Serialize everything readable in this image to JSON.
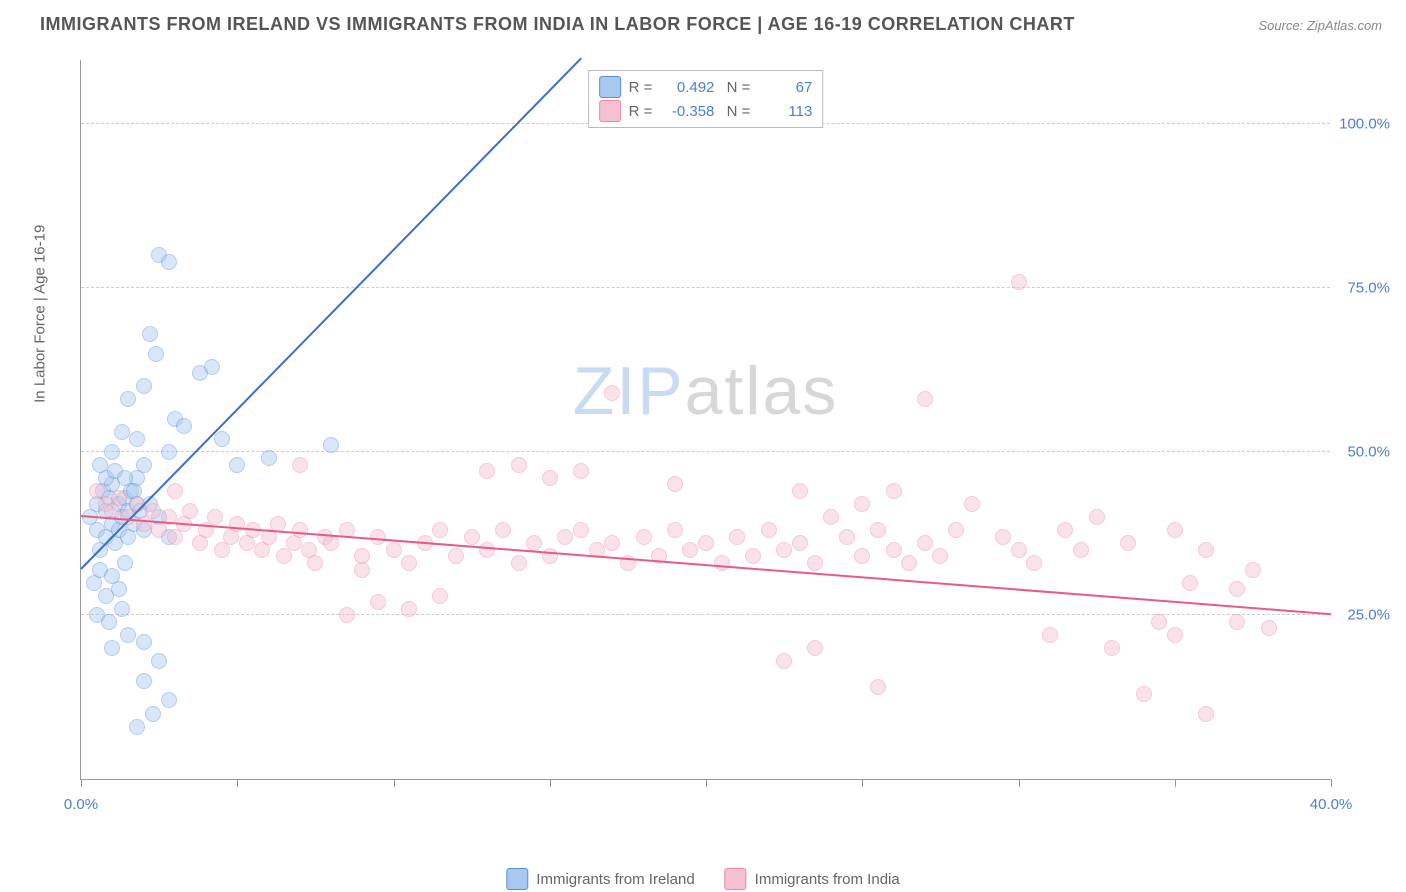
{
  "title": "IMMIGRANTS FROM IRELAND VS IMMIGRANTS FROM INDIA IN LABOR FORCE | AGE 16-19 CORRELATION CHART",
  "source": "Source: ZipAtlas.com",
  "watermark": {
    "part1": "ZIP",
    "part2": "atlas"
  },
  "chart": {
    "type": "scatter",
    "ylabel": "In Labor Force | Age 16-19",
    "background_color": "#ffffff",
    "grid_color": "#cccccc",
    "axis_color": "#999999",
    "tick_color": "#4a7fd8",
    "xlim": [
      0,
      40
    ],
    "ylim": [
      0,
      110
    ],
    "xticks": [
      0,
      40
    ],
    "xtick_labels": [
      "0.0%",
      "40.0%"
    ],
    "xtick_minors": [
      5,
      10,
      15,
      20,
      25,
      30,
      35
    ],
    "yticks": [
      25,
      50,
      75,
      100
    ],
    "ytick_labels": [
      "25.0%",
      "50.0%",
      "75.0%",
      "100.0%"
    ],
    "marker_radius": 8,
    "marker_opacity": 0.45,
    "series": [
      {
        "name": "Immigrants from Ireland",
        "fill_color": "#a8c8f0",
        "stroke_color": "#5a8fd8",
        "line_color": "#3a6fd0",
        "R": "0.492",
        "N": "67",
        "trend": {
          "x1": 0,
          "y1": 32,
          "x2": 16,
          "y2": 110
        },
        "points": [
          [
            0.3,
            40
          ],
          [
            0.5,
            42
          ],
          [
            0.5,
            38
          ],
          [
            0.6,
            35
          ],
          [
            0.7,
            44
          ],
          [
            0.8,
            41
          ],
          [
            0.8,
            37
          ],
          [
            0.9,
            43
          ],
          [
            1.0,
            39
          ],
          [
            1.0,
            45
          ],
          [
            1.1,
            36
          ],
          [
            1.2,
            42
          ],
          [
            1.2,
            38
          ],
          [
            1.3,
            40
          ],
          [
            1.4,
            43
          ],
          [
            1.5,
            41
          ],
          [
            1.5,
            37
          ],
          [
            1.6,
            44
          ],
          [
            1.7,
            39
          ],
          [
            1.8,
            42
          ],
          [
            0.4,
            30
          ],
          [
            0.6,
            32
          ],
          [
            0.8,
            28
          ],
          [
            1.0,
            31
          ],
          [
            1.2,
            29
          ],
          [
            1.4,
            33
          ],
          [
            0.5,
            25
          ],
          [
            0.9,
            24
          ],
          [
            1.3,
            26
          ],
          [
            1.0,
            20
          ],
          [
            1.5,
            22
          ],
          [
            2.0,
            21
          ],
          [
            2.5,
            18
          ],
          [
            2.0,
            15
          ],
          [
            2.8,
            12
          ],
          [
            2.3,
            10
          ],
          [
            1.8,
            8
          ],
          [
            2.0,
            38
          ],
          [
            2.5,
            40
          ],
          [
            2.8,
            37
          ],
          [
            2.2,
            42
          ],
          [
            2.0,
            48
          ],
          [
            2.8,
            50
          ],
          [
            1.8,
            52
          ],
          [
            3.0,
            55
          ],
          [
            3.3,
            54
          ],
          [
            1.5,
            58
          ],
          [
            2.0,
            60
          ],
          [
            2.4,
            65
          ],
          [
            2.2,
            68
          ],
          [
            3.8,
            62
          ],
          [
            4.2,
            63
          ],
          [
            5.0,
            48
          ],
          [
            4.5,
            52
          ],
          [
            6.0,
            49
          ],
          [
            8.0,
            51
          ],
          [
            1.0,
            50
          ],
          [
            1.3,
            53
          ],
          [
            1.8,
            46
          ],
          [
            2.5,
            80
          ],
          [
            2.8,
            79
          ],
          [
            0.8,
            46
          ],
          [
            0.6,
            48
          ],
          [
            1.1,
            47
          ],
          [
            1.7,
            44
          ],
          [
            1.4,
            46
          ],
          [
            1.9,
            41
          ]
        ]
      },
      {
        "name": "Immigrants from India",
        "fill_color": "#f5c0d0",
        "stroke_color": "#e88aa8",
        "line_color": "#e85a8a",
        "R": "-0.358",
        "N": "113",
        "trend": {
          "x1": 0,
          "y1": 40,
          "x2": 40,
          "y2": 25
        },
        "points": [
          [
            0.5,
            44
          ],
          [
            0.8,
            42
          ],
          [
            1.0,
            41
          ],
          [
            1.2,
            43
          ],
          [
            1.5,
            40
          ],
          [
            1.8,
            42
          ],
          [
            2.0,
            39
          ],
          [
            2.3,
            41
          ],
          [
            2.5,
            38
          ],
          [
            2.8,
            40
          ],
          [
            3.0,
            37
          ],
          [
            3.3,
            39
          ],
          [
            3.5,
            41
          ],
          [
            3.8,
            36
          ],
          [
            4.0,
            38
          ],
          [
            4.3,
            40
          ],
          [
            4.5,
            35
          ],
          [
            4.8,
            37
          ],
          [
            5.0,
            39
          ],
          [
            5.3,
            36
          ],
          [
            5.5,
            38
          ],
          [
            5.8,
            35
          ],
          [
            6.0,
            37
          ],
          [
            6.3,
            39
          ],
          [
            6.5,
            34
          ],
          [
            6.8,
            36
          ],
          [
            7.0,
            38
          ],
          [
            7.3,
            35
          ],
          [
            7.5,
            33
          ],
          [
            7.8,
            37
          ],
          [
            8.0,
            36
          ],
          [
            8.5,
            38
          ],
          [
            9.0,
            34
          ],
          [
            9.5,
            37
          ],
          [
            10.0,
            35
          ],
          [
            10.5,
            33
          ],
          [
            11.0,
            36
          ],
          [
            11.5,
            38
          ],
          [
            12.0,
            34
          ],
          [
            12.5,
            37
          ],
          [
            13.0,
            47
          ],
          [
            13.0,
            35
          ],
          [
            13.5,
            38
          ],
          [
            14.0,
            33
          ],
          [
            14.0,
            48
          ],
          [
            14.5,
            36
          ],
          [
            15.0,
            34
          ],
          [
            15.0,
            46
          ],
          [
            15.5,
            37
          ],
          [
            16.0,
            38
          ],
          [
            16.0,
            47
          ],
          [
            16.5,
            35
          ],
          [
            17.0,
            36
          ],
          [
            17.0,
            59
          ],
          [
            17.5,
            33
          ],
          [
            18.0,
            37
          ],
          [
            18.5,
            34
          ],
          [
            19.0,
            38
          ],
          [
            19.0,
            45
          ],
          [
            19.5,
            35
          ],
          [
            20.0,
            36
          ],
          [
            20.5,
            33
          ],
          [
            21.0,
            37
          ],
          [
            21.5,
            34
          ],
          [
            22.0,
            38
          ],
          [
            22.5,
            35
          ],
          [
            23.0,
            36
          ],
          [
            23.0,
            44
          ],
          [
            23.5,
            33
          ],
          [
            24.0,
            40
          ],
          [
            24.5,
            37
          ],
          [
            25.0,
            34
          ],
          [
            25.0,
            42
          ],
          [
            25.5,
            38
          ],
          [
            26.0,
            35
          ],
          [
            26.0,
            44
          ],
          [
            26.5,
            33
          ],
          [
            27.0,
            36
          ],
          [
            27.0,
            58
          ],
          [
            27.5,
            34
          ],
          [
            28.0,
            38
          ],
          [
            28.5,
            42
          ],
          [
            29.5,
            37
          ],
          [
            30.0,
            35
          ],
          [
            30.0,
            76
          ],
          [
            30.5,
            33
          ],
          [
            31.0,
            22
          ],
          [
            31.5,
            38
          ],
          [
            32.0,
            35
          ],
          [
            32.5,
            40
          ],
          [
            33.0,
            20
          ],
          [
            33.5,
            36
          ],
          [
            34.0,
            13
          ],
          [
            34.5,
            24
          ],
          [
            35.0,
            38
          ],
          [
            35.0,
            22
          ],
          [
            35.5,
            30
          ],
          [
            36.0,
            35
          ],
          [
            36.0,
            10
          ],
          [
            37.0,
            24
          ],
          [
            37.0,
            29
          ],
          [
            37.5,
            32
          ],
          [
            38.0,
            23
          ],
          [
            25.5,
            14
          ],
          [
            22.5,
            18
          ],
          [
            23.5,
            20
          ],
          [
            8.5,
            25
          ],
          [
            9.5,
            27
          ],
          [
            10.5,
            26
          ],
          [
            11.5,
            28
          ],
          [
            7.0,
            48
          ],
          [
            9.0,
            32
          ],
          [
            3.0,
            44
          ]
        ]
      }
    ]
  }
}
